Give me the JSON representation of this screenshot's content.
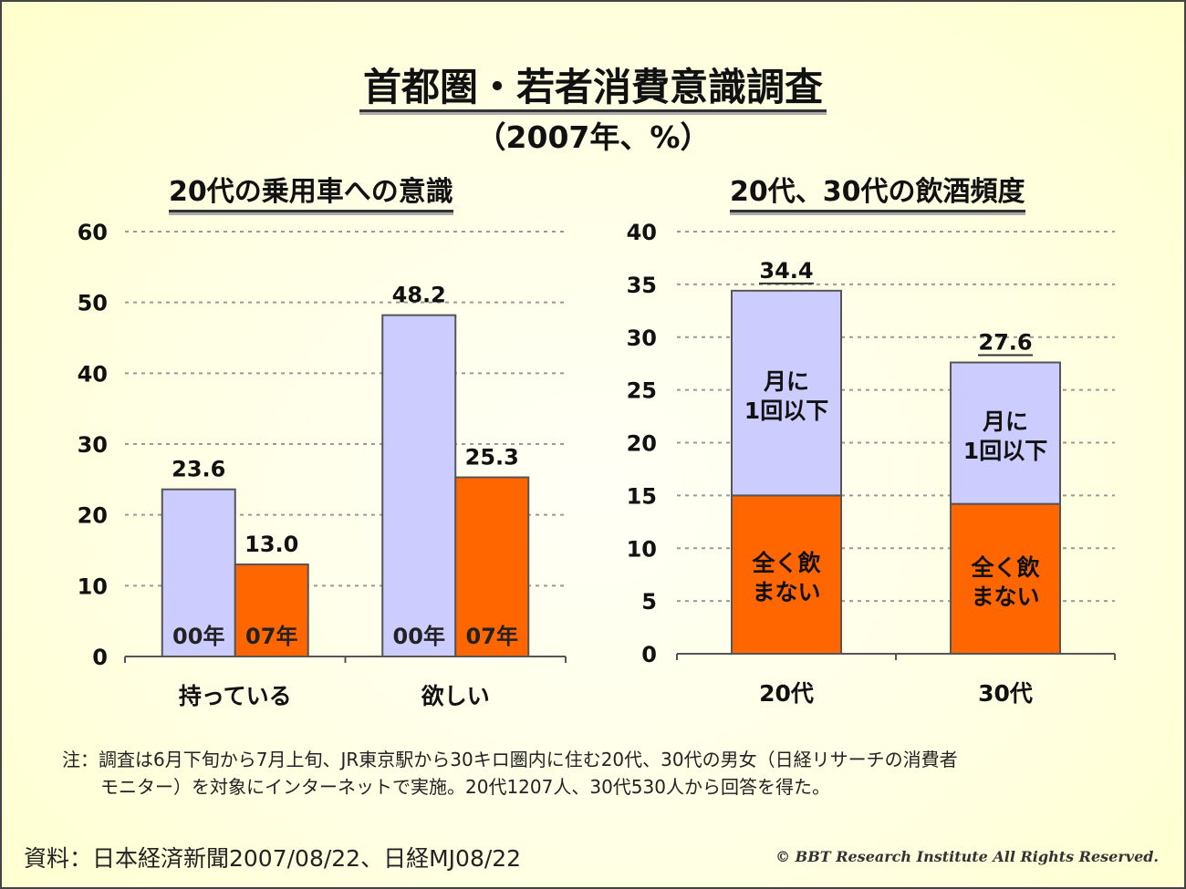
{
  "title": "首都圏・若者消費意識調査",
  "subtitle": "（2007年、%）",
  "chart_data": [
    {
      "type": "bar",
      "title": "20代の乗用車への意識",
      "categories": [
        "持っている",
        "欲しい"
      ],
      "series": [
        {
          "name": "00年",
          "values": [
            23.6,
            48.2
          ],
          "color": "#ccccff"
        },
        {
          "name": "07年",
          "values": [
            13.0,
            25.3
          ],
          "color": "#ff6600"
        }
      ],
      "data_labels": [
        [
          "23.6",
          "48.2"
        ],
        [
          "13.0",
          "25.3"
        ]
      ],
      "ylim": [
        0,
        60
      ],
      "yticks": [
        0,
        10,
        20,
        30,
        40,
        50,
        60
      ],
      "grid": true,
      "legend": "inside-bars"
    },
    {
      "type": "bar",
      "stacked": true,
      "title": "20代、30代の飲酒頻度",
      "categories": [
        "20代",
        "30代"
      ],
      "series": [
        {
          "name": "全く飲まない",
          "values": [
            15.0,
            14.2
          ],
          "color": "#ff6600"
        },
        {
          "name": "月に1回以下",
          "values": [
            19.4,
            13.4
          ],
          "color": "#ccccff"
        }
      ],
      "totals": [
        "34.4",
        "27.6"
      ],
      "ylim": [
        0,
        40
      ],
      "yticks": [
        0,
        5,
        10,
        15,
        20,
        25,
        30,
        35,
        40
      ],
      "grid": true,
      "legend": "inside-bars"
    }
  ],
  "note_line1": "注：調査は6月下旬から7月上旬、JR東京駅から30キロ圏内に住む20代、30代の男女（日経リサーチの消費者",
  "note_line2": "モニター）を対象にインターネットで実施。20代1207人、30代530人から回答を得た。",
  "source": "資料：日本経済新聞2007/08/22、日経MJ08/22",
  "copyright": "© BBT Research Institute All Rights Reserved."
}
